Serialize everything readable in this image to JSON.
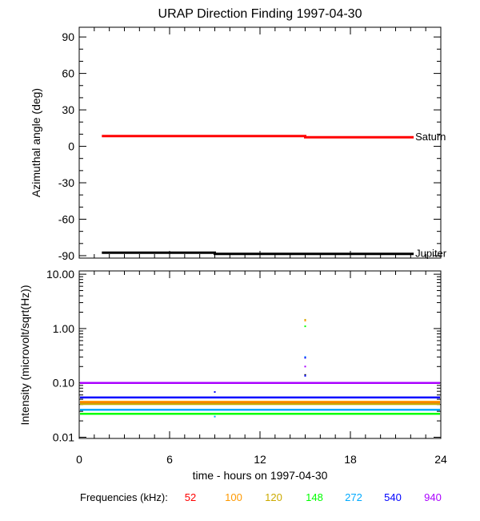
{
  "title": "URAP Direction Finding  1997-04-30",
  "xlabel": "time - hours on 1997-04-30",
  "frequencies_label": "Frequencies (kHz):",
  "chart_data": [
    {
      "type": "line",
      "ylabel": "Azimuthal angle (deg)",
      "xlim": [
        0,
        24
      ],
      "ylim": [
        -92,
        98
      ],
      "yticks": [
        -90,
        -60,
        -30,
        0,
        30,
        60,
        90
      ],
      "ytick_labels": [
        "-90",
        "-60",
        "-30",
        "0",
        "30",
        "60",
        "90"
      ],
      "xticks": [
        0,
        6,
        12,
        18,
        24
      ],
      "xtick_labels": [
        "0",
        "6",
        "12",
        "18",
        "24"
      ],
      "grid": false,
      "series": [
        {
          "name": "Saturn",
          "color": "#ff0000",
          "x": [
            1.5,
            15,
            15,
            22.2
          ],
          "y": [
            8.5,
            8.5,
            7.5,
            7.5
          ]
        },
        {
          "name": "Jupiter",
          "color": "#000000",
          "x": [
            1.5,
            9,
            9,
            22.2
          ],
          "y": [
            -87.5,
            -87.5,
            -88.5,
            -88.5
          ]
        }
      ]
    },
    {
      "type": "scatter",
      "ylabel": "Intensity (microvolt/sqrt(Hz))",
      "scale": "log",
      "xlim": [
        0,
        24
      ],
      "ylim": [
        0.0095,
        11.5
      ],
      "yticks": [
        0.01,
        0.1,
        1,
        10
      ],
      "ytick_labels": [
        "0.01",
        "0.10",
        "1.00",
        "10.00"
      ],
      "xticks": [
        0,
        6,
        12,
        18,
        24
      ],
      "xtick_labels": [
        "0",
        "6",
        "12",
        "18",
        "24"
      ],
      "grid": false,
      "series": [
        {
          "name": "52",
          "color": "#ff0000",
          "level": 0.043
        },
        {
          "name": "100",
          "color": "#ff9900",
          "level": 0.045
        },
        {
          "name": "120",
          "color": "#ccaa00",
          "level": 0.041
        },
        {
          "name": "148",
          "color": "#00ff00",
          "level": 0.027
        },
        {
          "name": "272",
          "color": "#00aaff",
          "level": 0.032
        },
        {
          "name": "540",
          "color": "#0000ff",
          "level": 0.054
        },
        {
          "name": "940",
          "color": "#aa00ff",
          "level": 0.1
        }
      ],
      "spikes": [
        {
          "x": 15,
          "y": 1.45,
          "color": "#ccaa00"
        },
        {
          "x": 15,
          "y": 1.4,
          "color": "#ff9900"
        },
        {
          "x": 15,
          "y": 1.1,
          "color": "#00ff00"
        },
        {
          "x": 15,
          "y": 0.3,
          "color": "#00aaff"
        },
        {
          "x": 15,
          "y": 0.29,
          "color": "#0000ff"
        },
        {
          "x": 15,
          "y": 0.2,
          "color": "#aa00ff"
        },
        {
          "x": 15,
          "y": 0.14,
          "color": "#000000"
        },
        {
          "x": 15,
          "y": 0.135,
          "color": "#0000ff"
        },
        {
          "x": 9,
          "y": 0.068,
          "color": "#0000ff"
        },
        {
          "x": 9,
          "y": 0.024,
          "color": "#00aaff"
        }
      ]
    }
  ]
}
